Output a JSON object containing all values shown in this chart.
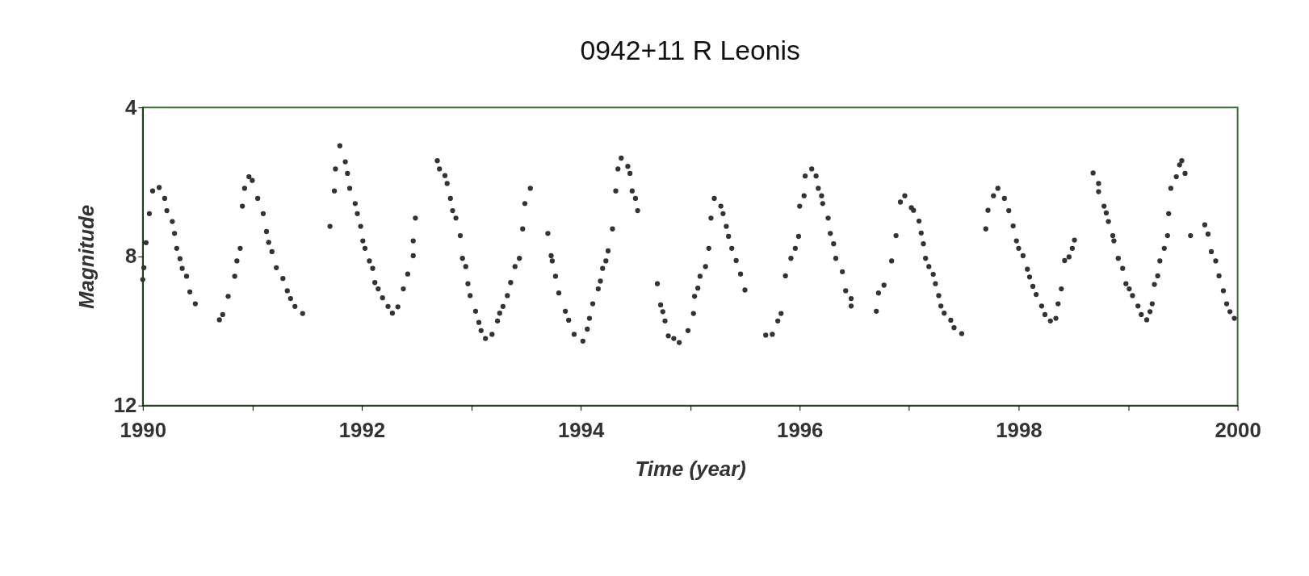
{
  "chart_data": {
    "type": "scatter",
    "title": "0942+11 R Leonis",
    "xlabel": "Time (year)",
    "ylabel": "Magnitude",
    "xlim": [
      1990,
      2000
    ],
    "ylim": [
      12,
      4
    ],
    "xticks": [
      1990,
      {
        "value": 1991,
        "label": null
      },
      1992,
      {
        "value": 1993,
        "label": null
      },
      1994,
      {
        "value": 1995,
        "label": null
      },
      1996,
      {
        "value": 1997,
        "label": null
      },
      1998,
      {
        "value": 1999,
        "label": null
      },
      2000
    ],
    "yticks": [
      4,
      8,
      12
    ],
    "grid": false,
    "marker": "circle",
    "series": [
      {
        "color": "#333333",
        "x": [
          1990.0,
          1990.01,
          1990.03,
          1990.06,
          1990.09,
          1990.15,
          1990.2,
          1990.22,
          1990.27,
          1990.29,
          1990.31,
          1990.34,
          1990.36,
          1990.4,
          1990.43,
          1990.48,
          1990.7,
          1990.73,
          1990.78,
          1990.84,
          1990.86,
          1990.89,
          1990.91,
          1990.93,
          1990.97,
          1991.0,
          1991.05,
          1991.1,
          1991.13,
          1991.15,
          1991.18,
          1991.22,
          1991.28,
          1991.32,
          1991.35,
          1991.39,
          1991.46,
          1991.71,
          1991.75,
          1991.76,
          1991.8,
          1991.85,
          1991.87,
          1991.89,
          1991.94,
          1991.96,
          1991.99,
          1992.01,
          1992.03,
          1992.07,
          1992.1,
          1992.12,
          1992.15,
          1992.19,
          1992.24,
          1992.28,
          1992.33,
          1992.38,
          1992.42,
          1992.47,
          1992.47,
          1992.49,
          1992.69,
          1992.71,
          1992.76,
          1992.78,
          1992.81,
          1992.83,
          1992.86,
          1992.9,
          1992.92,
          1992.95,
          1992.97,
          1992.99,
          1993.04,
          1993.07,
          1993.09,
          1993.13,
          1993.19,
          1993.24,
          1993.26,
          1993.29,
          1993.33,
          1993.36,
          1993.4,
          1993.44,
          1993.47,
          1993.49,
          1993.54,
          1993.7,
          1993.73,
          1993.74,
          1993.77,
          1993.8,
          1993.86,
          1993.89,
          1993.94,
          1994.02,
          1994.06,
          1994.08,
          1994.11,
          1994.16,
          1994.18,
          1994.2,
          1994.23,
          1994.25,
          1994.29,
          1994.32,
          1994.34,
          1994.37,
          1994.43,
          1994.45,
          1994.47,
          1994.5,
          1994.52,
          1994.7,
          1994.73,
          1994.75,
          1994.77,
          1994.8,
          1994.85,
          1994.9,
          1994.98,
          1995.03,
          1995.04,
          1995.07,
          1995.09,
          1995.14,
          1995.17,
          1995.19,
          1995.22,
          1995.28,
          1995.3,
          1995.33,
          1995.35,
          1995.38,
          1995.42,
          1995.46,
          1995.5,
          1995.69,
          1995.75,
          1995.8,
          1995.83,
          1995.87,
          1995.92,
          1995.96,
          1995.99,
          1996.0,
          1996.04,
          1996.05,
          1996.11,
          1996.15,
          1996.17,
          1996.2,
          1996.21,
          1996.26,
          1996.28,
          1996.31,
          1996.33,
          1996.39,
          1996.42,
          1996.47,
          1996.47,
          1996.7,
          1996.72,
          1996.77,
          1996.84,
          1996.88,
          1996.92,
          1996.96,
          1997.02,
          1997.04,
          1997.09,
          1997.11,
          1997.13,
          1997.15,
          1997.18,
          1997.22,
          1997.24,
          1997.27,
          1997.29,
          1997.32,
          1997.38,
          1997.41,
          1997.48,
          1997.7,
          1997.72,
          1997.77,
          1997.81,
          1997.87,
          1997.91,
          1997.95,
          1997.98,
          1998.0,
          1998.04,
          1998.08,
          1998.1,
          1998.13,
          1998.16,
          1998.21,
          1998.24,
          1998.29,
          1998.34,
          1998.36,
          1998.39,
          1998.42,
          1998.46,
          1998.49,
          1998.51,
          1998.68,
          1998.73,
          1998.73,
          1998.78,
          1998.8,
          1998.82,
          1998.86,
          1998.87,
          1998.91,
          1998.95,
          1998.98,
          1999.01,
          1999.04,
          1999.09,
          1999.12,
          1999.17,
          1999.2,
          1999.22,
          1999.24,
          1999.27,
          1999.29,
          1999.33,
          1999.36,
          1999.37,
          1999.39,
          1999.44,
          1999.47,
          1999.49,
          1999.52,
          1999.57,
          1999.7,
          1999.73,
          1999.76,
          1999.8,
          1999.83,
          1999.87,
          1999.9,
          1999.93,
          1999.97
        ],
        "values": [
          8.62,
          8.3,
          7.63,
          6.85,
          6.24,
          6.15,
          6.44,
          6.77,
          7.06,
          7.38,
          7.78,
          8.06,
          8.32,
          8.53,
          8.95,
          9.27,
          9.7,
          9.56,
          9.07,
          8.53,
          8.12,
          7.78,
          6.65,
          6.17,
          5.86,
          5.96,
          6.44,
          6.85,
          7.33,
          7.62,
          7.87,
          8.3,
          8.59,
          8.92,
          9.13,
          9.34,
          9.53,
          7.19,
          6.24,
          5.65,
          5.03,
          5.46,
          5.77,
          6.17,
          6.58,
          6.85,
          7.19,
          7.58,
          7.78,
          8.12,
          8.32,
          8.7,
          8.87,
          9.11,
          9.34,
          9.52,
          9.35,
          8.87,
          8.47,
          7.98,
          7.58,
          6.97,
          5.43,
          5.65,
          5.83,
          6.04,
          6.44,
          6.77,
          6.97,
          7.44,
          8.05,
          8.27,
          8.73,
          9.05,
          9.47,
          9.77,
          9.99,
          10.2,
          10.09,
          9.73,
          9.52,
          9.34,
          9.05,
          8.7,
          8.27,
          8.05,
          7.26,
          6.58,
          6.17,
          7.38,
          7.98,
          8.12,
          8.53,
          8.98,
          9.47,
          9.71,
          10.09,
          10.27,
          9.95,
          9.66,
          9.27,
          8.87,
          8.66,
          8.32,
          8.12,
          7.85,
          7.26,
          6.24,
          5.65,
          5.36,
          5.58,
          5.77,
          6.24,
          6.44,
          6.77,
          8.73,
          9.3,
          9.48,
          9.73,
          10.13,
          10.2,
          10.31,
          9.99,
          9.53,
          9.07,
          8.85,
          8.53,
          8.27,
          7.78,
          6.97,
          6.44,
          6.65,
          6.85,
          7.19,
          7.46,
          7.78,
          8.11,
          8.47,
          8.9,
          10.11,
          10.09,
          9.73,
          9.53,
          8.52,
          8.05,
          7.78,
          7.46,
          6.65,
          6.37,
          5.84,
          5.65,
          5.84,
          6.17,
          6.37,
          6.58,
          6.97,
          7.38,
          7.66,
          8.05,
          8.41,
          8.92,
          9.13,
          9.33,
          9.47,
          8.98,
          8.77,
          8.12,
          7.44,
          6.54,
          6.37,
          6.69,
          6.76,
          7.05,
          7.37,
          7.66,
          8.05,
          8.27,
          8.48,
          8.73,
          9.05,
          9.33,
          9.52,
          9.71,
          9.91,
          10.07,
          7.26,
          6.76,
          6.37,
          6.17,
          6.44,
          6.77,
          7.18,
          7.58,
          7.78,
          7.98,
          8.34,
          8.55,
          8.8,
          9.02,
          9.33,
          9.56,
          9.73,
          9.66,
          9.27,
          8.87,
          8.11,
          8.01,
          7.78,
          7.56,
          5.76,
          6.04,
          6.26,
          6.65,
          6.83,
          7.06,
          7.44,
          7.58,
          8.05,
          8.32,
          8.73,
          8.87,
          9.05,
          9.33,
          9.56,
          9.7,
          9.48,
          9.27,
          8.75,
          8.52,
          8.12,
          7.78,
          7.44,
          6.85,
          6.17,
          5.86,
          5.54,
          5.43,
          5.77,
          7.44,
          7.15,
          7.4,
          7.87,
          8.12,
          8.52,
          8.92,
          9.27,
          9.48,
          9.66
        ]
      }
    ]
  }
}
